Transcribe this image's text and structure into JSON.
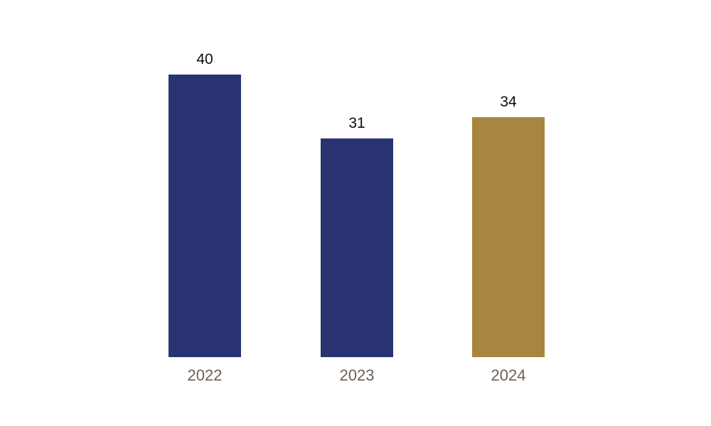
{
  "chart_data": {
    "type": "bar",
    "title": "",
    "xlabel": "",
    "ylabel": "",
    "categories": [
      "2022",
      "2023",
      "2024"
    ],
    "values": [
      40,
      31,
      34
    ],
    "ylim": [
      0,
      40
    ],
    "grid": false,
    "legend": false,
    "value_labels_shown": true,
    "bar_colors": [
      "#293372",
      "#293372",
      "#a8863f"
    ],
    "value_label_color": "#0d0d0d",
    "category_label_color": "#6e6055",
    "background_color": "#ffffff"
  }
}
